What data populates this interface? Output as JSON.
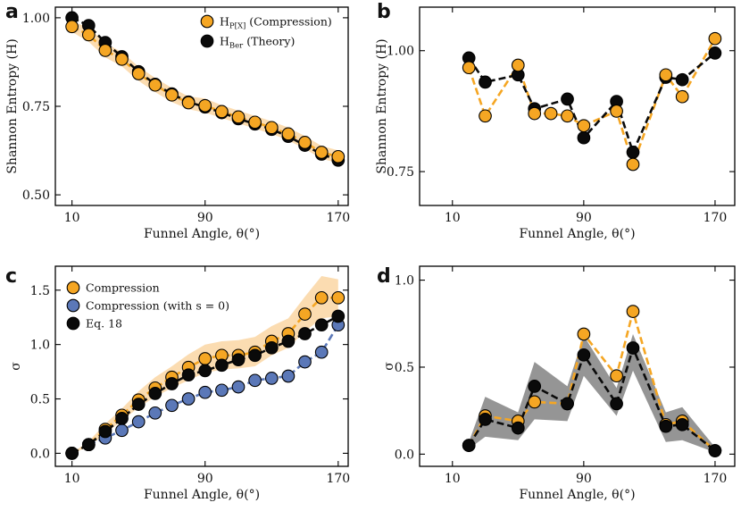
{
  "colors": {
    "orange": "#f5a623",
    "orange_band": "#fbd8a8",
    "black": "#0a0a0a",
    "blue": "#5b78b8",
    "gray_band": "#8f8f8f"
  },
  "chart_data": [
    {
      "id": "a",
      "type": "line",
      "panel_label": "a",
      "xlabel": "Funnel Angle, θ(°)",
      "ylabel": "Shannon Entropy (H)",
      "xlim": [
        0,
        176
      ],
      "ylim": [
        0.47,
        1.03
      ],
      "xticks": [
        10,
        90,
        170
      ],
      "xtick_labels": [
        "10",
        "90",
        "170"
      ],
      "yticks": [
        0.5,
        0.75,
        1.0
      ],
      "ytick_labels": [
        "0.50",
        "0.75",
        "1.00"
      ],
      "legend": {
        "position": "top-right",
        "entries": [
          {
            "series": "compression",
            "main": "H",
            "sub": "P[X]",
            "rest": " (Compression)"
          },
          {
            "series": "theory",
            "main": "H",
            "sub": "Ber",
            "rest": " (Theory)"
          }
        ]
      },
      "series": [
        {
          "name": "compression",
          "color": "orange",
          "style": "dashed",
          "x": [
            10,
            20,
            30,
            40,
            50,
            60,
            70,
            80,
            90,
            100,
            110,
            120,
            130,
            140,
            150,
            160,
            170
          ],
          "y": [
            0.975,
            0.952,
            0.908,
            0.883,
            0.842,
            0.81,
            0.782,
            0.76,
            0.752,
            0.735,
            0.72,
            0.705,
            0.69,
            0.672,
            0.648,
            0.62,
            0.608
          ],
          "band_low": [
            0.96,
            0.932,
            0.888,
            0.863,
            0.822,
            0.79,
            0.762,
            0.742,
            0.732,
            0.717,
            0.702,
            0.687,
            0.672,
            0.654,
            0.63,
            0.602,
            0.59
          ],
          "band_high": [
            0.99,
            0.972,
            0.928,
            0.903,
            0.862,
            0.83,
            0.802,
            0.778,
            0.772,
            0.753,
            0.738,
            0.723,
            0.708,
            0.69,
            0.666,
            0.638,
            0.626
          ],
          "band_color": "orange_band"
        },
        {
          "name": "theory",
          "color": "black",
          "style": "dashed",
          "x": [
            10,
            20,
            30,
            40,
            50,
            60,
            70,
            80,
            90,
            100,
            110,
            120,
            130,
            140,
            150,
            160,
            170
          ],
          "y": [
            1.0,
            0.978,
            0.93,
            0.89,
            0.848,
            0.812,
            0.785,
            0.762,
            0.748,
            0.732,
            0.715,
            0.7,
            0.685,
            0.665,
            0.64,
            0.615,
            0.598
          ]
        }
      ]
    },
    {
      "id": "b",
      "type": "line",
      "panel_label": "b",
      "xlabel": "Funnel Angle, θ(°)",
      "ylabel": "Shannon Entropy (H)",
      "xlim": [
        -10,
        182
      ],
      "ylim": [
        0.68,
        1.09
      ],
      "xticks": [
        10,
        90,
        170
      ],
      "xtick_labels": [
        "10",
        "90",
        "170"
      ],
      "yticks": [
        0.75,
        1.0
      ],
      "ytick_labels": [
        "0.75",
        "1.00"
      ],
      "series": [
        {
          "name": "compression",
          "color": "orange",
          "style": "dashed",
          "x": [
            20,
            30,
            50,
            60,
            70,
            80,
            90,
            110,
            120,
            140,
            150,
            170
          ],
          "y": [
            0.965,
            0.865,
            0.97,
            0.87,
            0.87,
            0.865,
            0.845,
            0.875,
            0.765,
            0.95,
            0.905,
            1.025
          ]
        },
        {
          "name": "theory",
          "color": "black",
          "style": "dashed",
          "x": [
            20,
            30,
            50,
            60,
            80,
            90,
            110,
            120,
            140,
            150,
            170
          ],
          "y": [
            0.985,
            0.935,
            0.95,
            0.88,
            0.9,
            0.82,
            0.895,
            0.79,
            0.945,
            0.94,
            0.995
          ]
        }
      ]
    },
    {
      "id": "c",
      "type": "line",
      "panel_label": "c",
      "xlabel": "Funnel Angle, θ(°)",
      "ylabel": "σ",
      "xlim": [
        0,
        176
      ],
      "ylim": [
        -0.12,
        1.72
      ],
      "xticks": [
        10,
        90,
        170
      ],
      "xtick_labels": [
        "10",
        "90",
        "170"
      ],
      "yticks": [
        0.0,
        0.5,
        1.0,
        1.5
      ],
      "ytick_labels": [
        "0.0",
        "0.5",
        "1.0",
        "1.5"
      ],
      "legend": {
        "position": "top-left",
        "entries": [
          {
            "series": "compression",
            "main": "Compression"
          },
          {
            "series": "compression_s0",
            "main": "Compression (with s = 0)"
          },
          {
            "series": "eq18",
            "main": "Eq. 18"
          }
        ]
      },
      "series": [
        {
          "name": "compression",
          "color": "orange",
          "style": "dashed",
          "x": [
            10,
            20,
            30,
            40,
            50,
            60,
            70,
            80,
            90,
            100,
            110,
            120,
            130,
            140,
            150,
            160,
            170
          ],
          "y": [
            0.0,
            0.08,
            0.22,
            0.35,
            0.49,
            0.6,
            0.7,
            0.79,
            0.87,
            0.9,
            0.9,
            0.93,
            1.03,
            1.1,
            1.28,
            1.43,
            1.43
          ],
          "band_low": [
            0.0,
            0.06,
            0.18,
            0.3,
            0.42,
            0.52,
            0.6,
            0.67,
            0.74,
            0.77,
            0.78,
            0.8,
            0.9,
            0.97,
            1.12,
            1.24,
            1.26
          ],
          "band_high": [
            0.0,
            0.11,
            0.27,
            0.41,
            0.57,
            0.7,
            0.8,
            0.91,
            1.0,
            1.03,
            1.04,
            1.07,
            1.17,
            1.24,
            1.44,
            1.63,
            1.6
          ],
          "band_color": "orange_band"
        },
        {
          "name": "compression_s0",
          "color": "blue",
          "style": "dashed",
          "x": [
            20,
            30,
            40,
            50,
            60,
            70,
            80,
            90,
            100,
            110,
            120,
            130,
            140,
            150,
            160,
            170
          ],
          "y": [
            0.08,
            0.14,
            0.21,
            0.29,
            0.37,
            0.44,
            0.5,
            0.56,
            0.58,
            0.61,
            0.67,
            0.69,
            0.71,
            0.84,
            0.93,
            1.18
          ]
        },
        {
          "name": "eq18",
          "color": "black",
          "style": "dashed",
          "x": [
            10,
            20,
            30,
            40,
            50,
            60,
            70,
            80,
            90,
            100,
            110,
            120,
            130,
            140,
            150,
            160,
            170
          ],
          "y": [
            0.0,
            0.08,
            0.2,
            0.32,
            0.45,
            0.55,
            0.64,
            0.72,
            0.76,
            0.81,
            0.86,
            0.9,
            0.97,
            1.03,
            1.1,
            1.18,
            1.26
          ]
        }
      ]
    },
    {
      "id": "d",
      "type": "line",
      "panel_label": "d",
      "xlabel": "Funnel Angle, θ(°)",
      "ylabel": "σ",
      "xlim": [
        -10,
        182
      ],
      "ylim": [
        -0.07,
        1.08
      ],
      "xticks": [
        10,
        90,
        170
      ],
      "xtick_labels": [
        "10",
        "90",
        "170"
      ],
      "yticks": [
        0.0,
        0.5,
        1.0
      ],
      "ytick_labels": [
        "0.0",
        "0.5",
        "1.0"
      ],
      "series": [
        {
          "name": "compression",
          "color": "orange",
          "style": "dashed",
          "x": [
            20,
            30,
            50,
            60,
            80,
            90,
            110,
            120,
            140,
            150,
            170
          ],
          "y": [
            0.05,
            0.22,
            0.19,
            0.3,
            0.29,
            0.69,
            0.45,
            0.82,
            0.17,
            0.19,
            0.02
          ]
        },
        {
          "name": "theory",
          "color": "black",
          "style": "dashed",
          "x": [
            20,
            30,
            50,
            60,
            80,
            90,
            110,
            120,
            140,
            150,
            170
          ],
          "y": [
            0.05,
            0.2,
            0.15,
            0.39,
            0.29,
            0.57,
            0.29,
            0.61,
            0.16,
            0.17,
            0.02
          ],
          "band_low": [
            0.03,
            0.1,
            0.08,
            0.2,
            0.19,
            0.45,
            0.22,
            0.48,
            0.07,
            0.08,
            0.01
          ],
          "band_high": [
            0.07,
            0.33,
            0.24,
            0.53,
            0.39,
            0.68,
            0.38,
            0.69,
            0.24,
            0.27,
            0.04
          ],
          "band_color": "gray_band"
        }
      ]
    }
  ]
}
